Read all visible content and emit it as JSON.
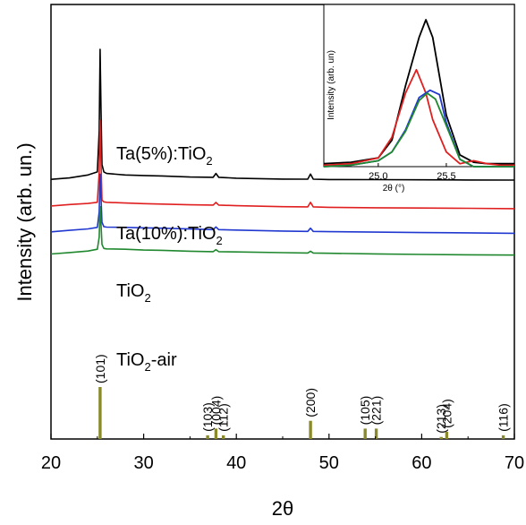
{
  "chart_data": [
    {
      "type": "line",
      "xlabel": "2θ",
      "ylabel": "Intensity (arb. un.)",
      "xlim": [
        20,
        70
      ],
      "xticks": [
        20,
        30,
        40,
        50,
        60,
        70
      ],
      "series": [
        {
          "name": "Ta(5%):TiO2",
          "label_main": "Ta(5%):TiO",
          "label_sub": "2",
          "label_suffix": "",
          "color": "#000000",
          "x": [
            20,
            22,
            24,
            25.0,
            25.2,
            25.3,
            25.4,
            25.5,
            25.7,
            26,
            28,
            30,
            32,
            35,
            37.5,
            37.8,
            38.1,
            40,
            45,
            47.7,
            48.0,
            48.3,
            50,
            55,
            60,
            65,
            70
          ],
          "y": [
            12,
            13,
            15,
            17,
            45,
            100,
            60,
            22,
            17,
            16,
            15,
            14.6,
            14.3,
            13.6,
            13.4,
            16,
            13.4,
            12.8,
            12.2,
            12.1,
            15.6,
            12.1,
            11.9,
            11.8,
            11.7,
            11.6,
            11.5
          ]
        },
        {
          "name": "Ta(10%):TiO2",
          "label_main": "Ta(10%):TiO",
          "label_sub": "2",
          "label_suffix": "",
          "color": "#e02020",
          "x": [
            20,
            22,
            24,
            25.0,
            25.2,
            25.3,
            25.4,
            25.5,
            25.7,
            26,
            28,
            30,
            32,
            35,
            37.5,
            37.8,
            38.1,
            40,
            45,
            47.7,
            48.0,
            48.3,
            50,
            55,
            60,
            65,
            70
          ],
          "y": [
            -6,
            -5,
            -4.3,
            -3.5,
            17,
            52,
            24,
            -2,
            -3.2,
            -3.5,
            -4,
            -4.4,
            -4.7,
            -5.2,
            -5.4,
            -3.6,
            -5.4,
            -5.8,
            -6.5,
            -6.6,
            -3.5,
            -6.6,
            -6.9,
            -7.2,
            -7.4,
            -7.6,
            -7.8
          ]
        },
        {
          "name": "TiO2",
          "label_main": "TiO",
          "label_sub": "2",
          "label_suffix": "",
          "color": "#2038d0",
          "x": [
            20,
            22,
            24,
            25.0,
            25.2,
            25.3,
            25.4,
            25.5,
            25.7,
            26,
            28,
            30,
            32,
            35,
            37.5,
            37.8,
            38.1,
            40,
            45,
            47.7,
            48.0,
            48.3,
            50,
            55,
            60,
            65,
            70
          ],
          "y": [
            -23.5,
            -22.5,
            -21.5,
            -20.5,
            -10,
            15.5,
            0,
            -17,
            -20,
            -20.3,
            -20.5,
            -20.8,
            -21,
            -21.6,
            -22,
            -20.2,
            -22,
            -22.3,
            -23,
            -23.2,
            -21,
            -23.2,
            -23.4,
            -23.7,
            -24,
            -24.2,
            -24.5
          ]
        },
        {
          "name": "TiO2-air",
          "label_main": "TiO",
          "label_sub": "2",
          "label_suffix": "-air",
          "color": "#20882e",
          "x": [
            20,
            22,
            24,
            25.0,
            25.2,
            25.3,
            25.4,
            25.5,
            25.7,
            26,
            28,
            30,
            32,
            35,
            37.5,
            37.8,
            38.1,
            40,
            45,
            47.7,
            48.0,
            48.3,
            50,
            55,
            60,
            65,
            70
          ],
          "y": [
            -38.5,
            -37.5,
            -36.5,
            -35.3,
            -27,
            -6.5,
            -18,
            -32,
            -34.7,
            -35,
            -35.3,
            -35.8,
            -36,
            -36.6,
            -36.9,
            -35.6,
            -36.9,
            -37.1,
            -37.6,
            -37.8,
            -36.6,
            -37.8,
            -38,
            -38.4,
            -38.8,
            -39,
            -39.2
          ]
        }
      ],
      "reference_lines": {
        "color": "#8a8a2a",
        "peaks": [
          {
            "x": 25.3,
            "height": 1.0,
            "label": "(101)"
          },
          {
            "x": 36.9,
            "height": 0.07,
            "label": "(103)"
          },
          {
            "x": 37.8,
            "height": 0.2,
            "label": "(004)"
          },
          {
            "x": 38.6,
            "height": 0.07,
            "label": "(112)"
          },
          {
            "x": 48.0,
            "height": 0.35,
            "label": "(200)"
          },
          {
            "x": 53.9,
            "height": 0.2,
            "label": "(105)"
          },
          {
            "x": 55.1,
            "height": 0.2,
            "label": "(221)"
          },
          {
            "x": 62.1,
            "height": 0.04,
            "label": "(213)"
          },
          {
            "x": 62.7,
            "height": 0.14,
            "label": "(204)"
          },
          {
            "x": 68.8,
            "height": 0.07,
            "label": "(116)"
          }
        ]
      }
    },
    {
      "type": "line",
      "xlabel": "2θ (°)",
      "ylabel": "Intensity (arb. un)",
      "xlim": [
        24.6,
        26.0
      ],
      "xticks": [
        25.0,
        25.5
      ],
      "series": [
        {
          "name": "Ta(5%):TiO2",
          "color": "#000000",
          "x": [
            24.6,
            24.8,
            25.0,
            25.1,
            25.2,
            25.3,
            25.35,
            25.4,
            25.5,
            25.6,
            25.7,
            25.8,
            26.0
          ],
          "y": [
            0.02,
            0.03,
            0.06,
            0.18,
            0.55,
            0.88,
            1.0,
            0.88,
            0.35,
            0.08,
            0.03,
            0.02,
            0.02
          ]
        },
        {
          "name": "Ta(10%):TiO2",
          "color": "#e02020",
          "x": [
            24.6,
            24.8,
            25.0,
            25.1,
            25.2,
            25.28,
            25.35,
            25.4,
            25.5,
            25.6,
            25.7,
            25.8,
            25.9,
            26.0
          ],
          "y": [
            0.01,
            0.02,
            0.06,
            0.2,
            0.5,
            0.66,
            0.5,
            0.32,
            0.1,
            0.02,
            0.04,
            0.02,
            0.01,
            0.01
          ]
        },
        {
          "name": "TiO2",
          "color": "#2038d0",
          "x": [
            24.6,
            24.8,
            25.0,
            25.1,
            25.2,
            25.3,
            25.38,
            25.45,
            25.5,
            25.6,
            25.7,
            25.8,
            26.0
          ],
          "y": [
            0.0,
            0.01,
            0.04,
            0.1,
            0.25,
            0.47,
            0.52,
            0.49,
            0.3,
            0.05,
            0.0,
            0.0,
            0.0
          ]
        },
        {
          "name": "TiO2-air",
          "color": "#20882e",
          "x": [
            24.6,
            24.8,
            25.0,
            25.1,
            25.2,
            25.3,
            25.36,
            25.42,
            25.5,
            25.6,
            25.7,
            25.8,
            26.0
          ],
          "y": [
            0.0,
            0.01,
            0.04,
            0.1,
            0.24,
            0.45,
            0.5,
            0.46,
            0.28,
            0.05,
            0.0,
            0.0,
            0.0
          ]
        }
      ]
    }
  ]
}
